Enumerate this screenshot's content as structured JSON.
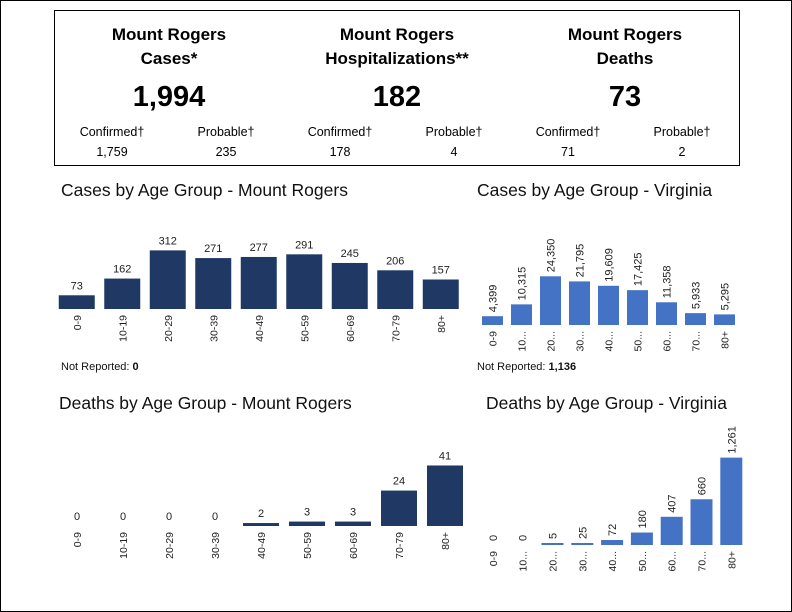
{
  "summary": [
    {
      "title_line1": "Mount Rogers",
      "title_line2": "Cases*",
      "total": "1,994",
      "left_label": "Confirmed†",
      "left_value": "1,759",
      "right_label": "Probable†",
      "right_value": "235"
    },
    {
      "title_line1": "Mount Rogers",
      "title_line2": "Hospitalizations**",
      "total": "182",
      "left_label": "Confirmed†",
      "left_value": "178",
      "right_label": "Probable†",
      "right_value": "4"
    },
    {
      "title_line1": "Mount Rogers",
      "title_line2": "Deaths",
      "total": "73",
      "left_label": "Confirmed†",
      "left_value": "71",
      "right_label": "Probable†",
      "right_value": "2"
    }
  ],
  "notes": {
    "mr_cases": {
      "label": "Not Reported: ",
      "value": "0"
    },
    "va_cases": {
      "label": "Not Reported: ",
      "value": "1,136"
    }
  },
  "colors": {
    "mount_rogers_bar": "#1f3864",
    "virginia_bar": "#4472c4"
  },
  "chart_data": [
    {
      "id": "mr_cases",
      "type": "bar",
      "title": "Cases by Age Group - Mount Rogers",
      "categories": [
        "0-9",
        "10-19",
        "20-29",
        "30-39",
        "40-49",
        "50-59",
        "60-69",
        "70-79",
        "80+"
      ],
      "values": [
        73,
        162,
        312,
        271,
        277,
        291,
        245,
        206,
        157
      ],
      "labels": [
        "73",
        "162",
        "312",
        "271",
        "277",
        "291",
        "245",
        "206",
        "157"
      ],
      "tick_labels": [
        "0-9",
        "10-19",
        "20-29",
        "30-39",
        "40-49",
        "50-59",
        "60-69",
        "70-79",
        "80+"
      ],
      "ylim": [
        0,
        330
      ],
      "color": "#1f3864"
    },
    {
      "id": "va_cases",
      "type": "bar",
      "title": "Cases by Age Group - Virginia",
      "categories": [
        "0-9",
        "10-19",
        "20-29",
        "30-39",
        "40-49",
        "50-59",
        "60-69",
        "70-79",
        "80+"
      ],
      "values": [
        4399,
        10315,
        24350,
        21795,
        19609,
        17425,
        11358,
        5933,
        5295
      ],
      "labels": [
        "4,399",
        "10,315",
        "24,350",
        "21,795",
        "19,609",
        "17,425",
        "11,358",
        "5,933",
        "5,295"
      ],
      "tick_labels": [
        "0-9",
        "10...",
        "20...",
        "30...",
        "40...",
        "50...",
        "60...",
        "70...",
        "80+"
      ],
      "ylim": [
        0,
        26000
      ],
      "color": "#4472c4"
    },
    {
      "id": "mr_deaths",
      "type": "bar",
      "title": "Deaths by Age Group - Mount Rogers",
      "categories": [
        "0-9",
        "10-19",
        "20-29",
        "30-39",
        "40-49",
        "50-59",
        "60-69",
        "70-79",
        "80+"
      ],
      "values": [
        0,
        0,
        0,
        0,
        2,
        3,
        3,
        24,
        41
      ],
      "labels": [
        "0",
        "0",
        "0",
        "0",
        "2",
        "3",
        "3",
        "24",
        "41"
      ],
      "tick_labels": [
        "0-9",
        "10-19",
        "20-29",
        "30-39",
        "40-49",
        "50-59",
        "60-69",
        "70-79",
        "80+"
      ],
      "ylim": [
        0,
        42
      ],
      "color": "#1f3864"
    },
    {
      "id": "va_deaths",
      "type": "bar",
      "title": "Deaths by Age Group - Virginia",
      "categories": [
        "0-9",
        "10-19",
        "20-29",
        "30-39",
        "40-49",
        "50-59",
        "60-69",
        "70-79",
        "80+"
      ],
      "values": [
        0,
        0,
        5,
        25,
        72,
        180,
        407,
        660,
        1261
      ],
      "labels": [
        "0",
        "0",
        "5",
        "25",
        "72",
        "180",
        "407",
        "660",
        "1,261"
      ],
      "tick_labels": [
        "0-9",
        "10...",
        "20...",
        "30...",
        "40...",
        "50...",
        "60...",
        "70...",
        "80+"
      ],
      "ylim": [
        0,
        1270
      ],
      "color": "#4472c4"
    }
  ]
}
